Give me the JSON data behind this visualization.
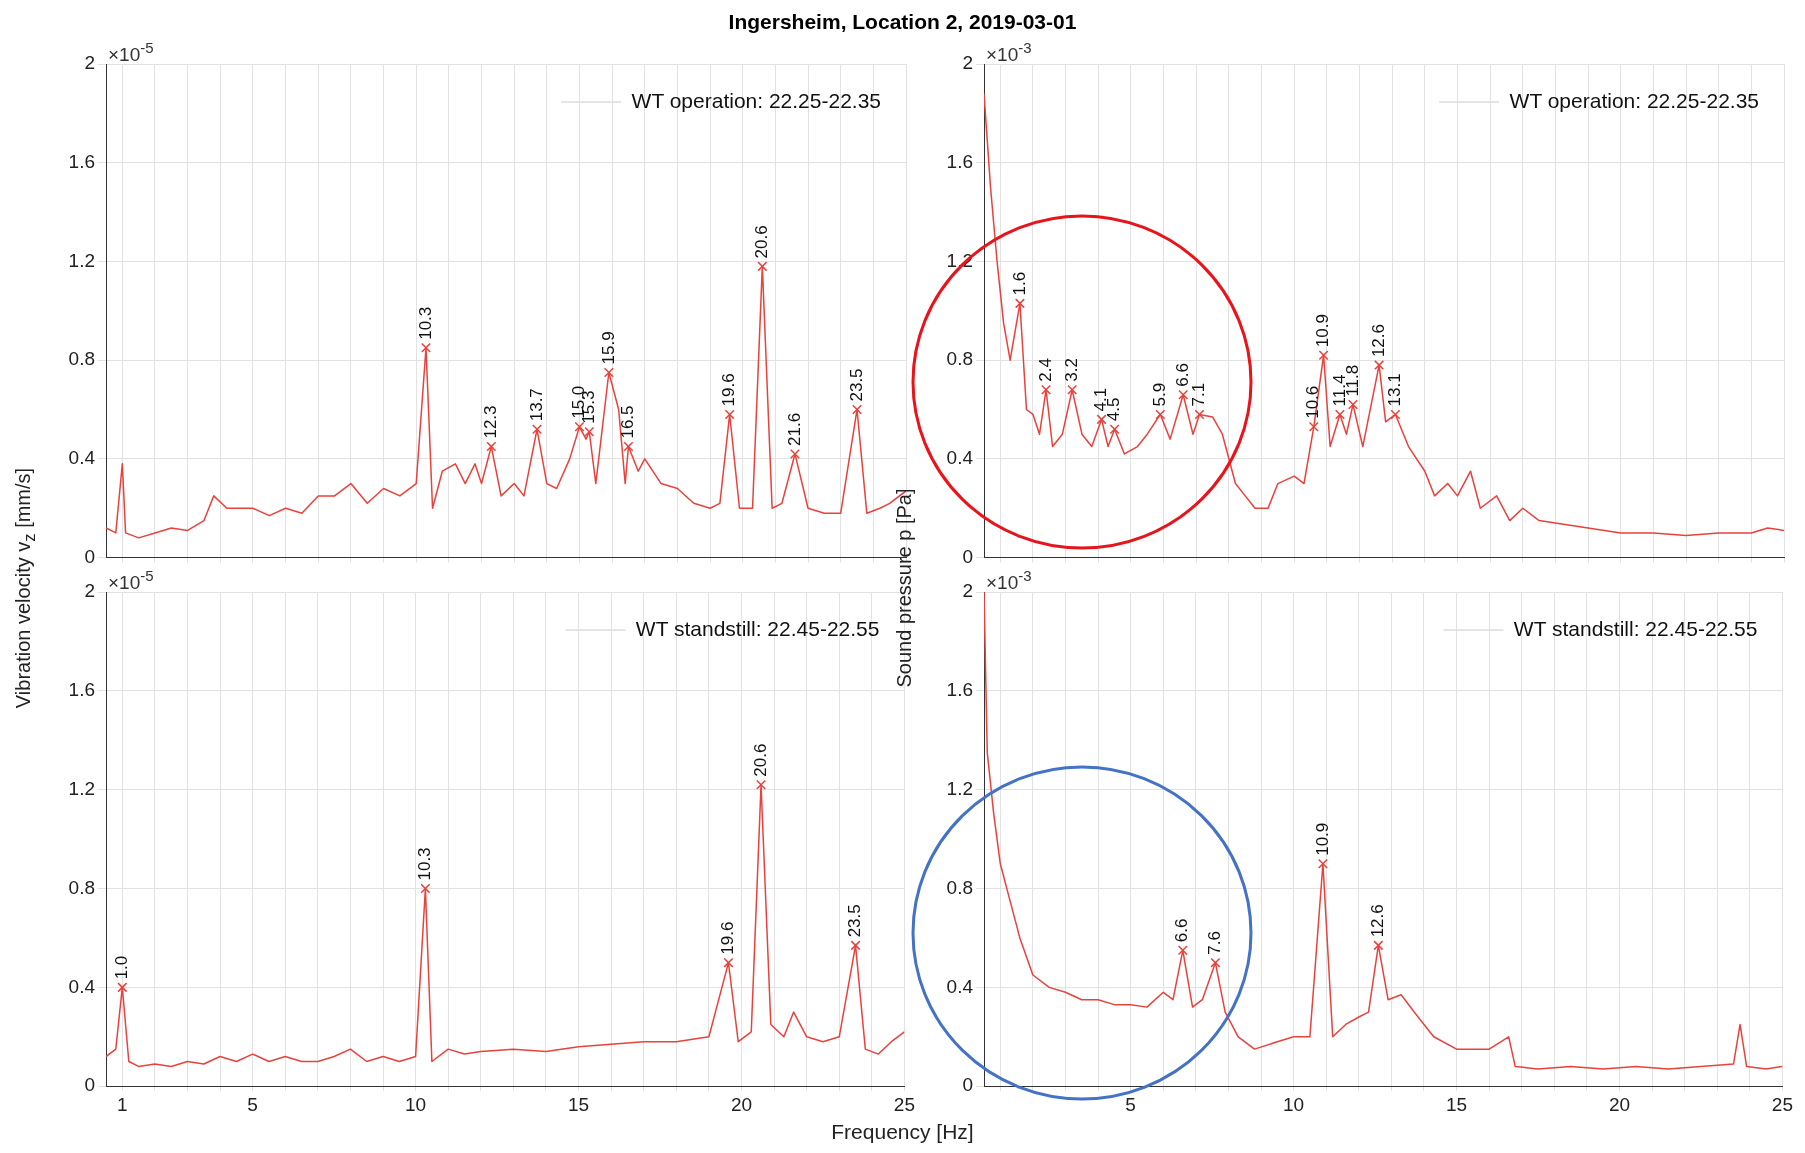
{
  "chart_data": [
    {
      "type": "line",
      "title": "Ingersheim, Location 2, 2019-03-01",
      "ylabel": "Vibration velocity v$_{z}$ [mm/s]",
      "xlim": [
        0.5,
        25
      ],
      "ylim": [
        0,
        2
      ],
      "yticks": [
        0,
        0.4,
        0.8,
        1.2,
        1.6,
        2
      ],
      "xticks": [
        1,
        {
          "value": 2,
          "label": null
        },
        {
          "value": 3,
          "label": null
        },
        {
          "value": 4,
          "label": null
        },
        5,
        {
          "value": 6,
          "label": null
        },
        {
          "value": 7,
          "label": null
        },
        {
          "value": 8,
          "label": null
        },
        {
          "value": 9,
          "label": null
        },
        10,
        {
          "value": 11,
          "label": null
        },
        {
          "value": 12,
          "label": null
        },
        {
          "value": 13,
          "label": null
        },
        {
          "value": 14,
          "label": null
        },
        15,
        {
          "value": 16,
          "label": null
        },
        {
          "value": 17,
          "label": null
        },
        {
          "value": 18,
          "label": null
        },
        {
          "value": 19,
          "label": null
        },
        20,
        {
          "value": 21,
          "label": null
        },
        {
          "value": 22,
          "label": null
        },
        {
          "value": 23,
          "label": null
        },
        {
          "value": 24,
          "label": null
        },
        25
      ],
      "grid": true,
      "tick_labels": "y",
      "annotations": [
        "×10$^{-5}$",
        "WT operation: 22.25-22.35",
        {
          "text": "10.3",
          "x": 10.3,
          "y": 0.85
        },
        {
          "text": "12.3",
          "x": 12.3,
          "y": 0.45
        },
        {
          "text": "13.7",
          "x": 13.7,
          "y": 0.52
        },
        {
          "text": "15.0",
          "x": 15.0,
          "y": 0.53
        },
        {
          "text": "15.3",
          "x": 15.3,
          "y": 0.51
        },
        {
          "text": "15.9",
          "x": 15.9,
          "y": 0.75
        },
        {
          "text": "16.5",
          "x": 16.5,
          "y": 0.45
        },
        {
          "text": "19.6",
          "x": 19.6,
          "y": 0.58
        },
        {
          "text": "20.6",
          "x": 20.6,
          "y": 1.18
        },
        {
          "text": "21.6",
          "x": 21.6,
          "y": 0.42
        },
        {
          "text": "23.5",
          "x": 23.5,
          "y": 0.6
        }
      ],
      "series": [
        {
          "color": "#e8423c",
          "x": [
            0.5,
            0.8,
            1.0,
            1.1,
            1.5,
            2,
            2.5,
            3,
            3.5,
            3.8,
            4.2,
            5,
            5.5,
            6,
            6.5,
            7,
            7.5,
            8,
            8.5,
            9,
            9.5,
            10,
            10.3,
            10.5,
            10.8,
            11.2,
            11.5,
            11.8,
            12,
            12.3,
            12.6,
            13,
            13.3,
            13.7,
            14,
            14.3,
            14.7,
            15.0,
            15.2,
            15.3,
            15.5,
            15.9,
            16.2,
            16.4,
            16.5,
            16.8,
            17,
            17.5,
            18,
            18.5,
            19,
            19.3,
            19.6,
            19.9,
            20.3,
            20.6,
            20.9,
            21.2,
            21.6,
            22,
            22.5,
            23,
            23.5,
            23.8,
            24.2,
            24.5,
            25
          ],
          "values": [
            0.12,
            0.1,
            0.38,
            0.1,
            0.08,
            0.1,
            0.12,
            0.11,
            0.15,
            0.25,
            0.2,
            0.2,
            0.17,
            0.2,
            0.18,
            0.25,
            0.25,
            0.3,
            0.22,
            0.28,
            0.25,
            0.3,
            0.85,
            0.2,
            0.35,
            0.38,
            0.3,
            0.38,
            0.3,
            0.45,
            0.25,
            0.3,
            0.25,
            0.52,
            0.3,
            0.28,
            0.4,
            0.53,
            0.48,
            0.51,
            0.3,
            0.75,
            0.6,
            0.3,
            0.45,
            0.35,
            0.4,
            0.3,
            0.28,
            0.22,
            0.2,
            0.22,
            0.58,
            0.2,
            0.2,
            1.18,
            0.2,
            0.22,
            0.42,
            0.2,
            0.18,
            0.18,
            0.6,
            0.18,
            0.2,
            0.22,
            0.27
          ]
        },
        {
          "type": "scatter",
          "color": "#e8423c",
          "marker": "cross",
          "x": [
            10.3,
            12.3,
            13.7,
            15.0,
            15.3,
            15.9,
            16.5,
            19.6,
            20.6,
            21.6,
            23.5
          ],
          "values": [
            0.85,
            0.45,
            0.52,
            0.53,
            0.51,
            0.75,
            0.45,
            0.58,
            1.18,
            0.42,
            0.6
          ]
        }
      ]
    },
    {
      "type": "line",
      "ylabel": "Sound pressure p [Pa]",
      "xlim": [
        0.5,
        25
      ],
      "ylim": [
        0,
        2
      ],
      "yticks": [
        0,
        0.4,
        0.8,
        1.2,
        1.6,
        2
      ],
      "xticks": [
        {
          "value": 1,
          "label": null
        },
        {
          "value": 2,
          "label": null
        },
        {
          "value": 3,
          "label": null
        },
        {
          "value": 4,
          "label": null
        },
        5,
        {
          "value": 6,
          "label": null
        },
        {
          "value": 7,
          "label": null
        },
        {
          "value": 8,
          "label": null
        },
        {
          "value": 9,
          "label": null
        },
        10,
        {
          "value": 11,
          "label": null
        },
        {
          "value": 12,
          "label": null
        },
        {
          "value": 13,
          "label": null
        },
        {
          "value": 14,
          "label": null
        },
        15,
        {
          "value": 16,
          "label": null
        },
        {
          "value": 17,
          "label": null
        },
        {
          "value": 18,
          "label": null
        },
        {
          "value": 19,
          "label": null
        },
        20,
        {
          "value": 21,
          "label": null
        },
        {
          "value": 22,
          "label": null
        },
        {
          "value": 23,
          "label": null
        },
        {
          "value": 24,
          "label": null
        },
        25
      ],
      "grid": true,
      "tick_labels": "y",
      "annotations": [
        "×10$^{-3}$",
        "WT operation: 22.25-22.35",
        {
          "text": "1.6",
          "x": 1.6,
          "y": 1.03
        },
        {
          "text": "2.4",
          "x": 2.4,
          "y": 0.68
        },
        {
          "text": "3.2",
          "x": 3.2,
          "y": 0.68
        },
        {
          "text": "4.1",
          "x": 4.1,
          "y": 0.56
        },
        {
          "text": "4.5",
          "x": 4.5,
          "y": 0.52
        },
        {
          "text": "5.9",
          "x": 5.9,
          "y": 0.58
        },
        {
          "text": "6.6",
          "x": 6.6,
          "y": 0.66
        },
        {
          "text": "7.1",
          "x": 7.1,
          "y": 0.58
        },
        {
          "text": "10.6",
          "x": 10.6,
          "y": 0.53
        },
        {
          "text": "10.9",
          "x": 10.9,
          "y": 0.82
        },
        {
          "text": "11.4",
          "x": 11.4,
          "y": 0.58
        },
        {
          "text": "11.8",
          "x": 11.8,
          "y": 0.62
        },
        {
          "text": "12.6",
          "x": 12.6,
          "y": 0.78
        },
        {
          "text": "13.1",
          "x": 13.1,
          "y": 0.58
        }
      ],
      "series": [
        {
          "color": "#e8423c",
          "x": [
            0.5,
            0.7,
            0.9,
            1.1,
            1.3,
            1.6,
            1.8,
            2.0,
            2.2,
            2.4,
            2.6,
            2.9,
            3.2,
            3.5,
            3.8,
            4.1,
            4.3,
            4.5,
            4.8,
            5.2,
            5.5,
            5.9,
            6.2,
            6.6,
            6.9,
            7.1,
            7.5,
            7.8,
            8.2,
            8.5,
            8.8,
            9.2,
            9.5,
            10,
            10.3,
            10.6,
            10.9,
            11.1,
            11.4,
            11.6,
            11.8,
            12.1,
            12.6,
            12.8,
            13.1,
            13.5,
            14,
            14.3,
            14.7,
            15,
            15.4,
            15.7,
            16.2,
            16.6,
            17,
            17.5,
            18,
            19,
            20,
            21,
            22,
            23,
            24,
            24.5,
            25
          ],
          "values": [
            1.88,
            1.5,
            1.2,
            0.95,
            0.8,
            1.03,
            0.6,
            0.58,
            0.5,
            0.68,
            0.45,
            0.5,
            0.68,
            0.5,
            0.45,
            0.56,
            0.45,
            0.52,
            0.42,
            0.45,
            0.5,
            0.58,
            0.48,
            0.66,
            0.5,
            0.58,
            0.57,
            0.5,
            0.3,
            0.25,
            0.2,
            0.2,
            0.3,
            0.33,
            0.3,
            0.53,
            0.82,
            0.45,
            0.58,
            0.5,
            0.62,
            0.45,
            0.78,
            0.55,
            0.58,
            0.45,
            0.35,
            0.25,
            0.3,
            0.25,
            0.35,
            0.2,
            0.25,
            0.15,
            0.2,
            0.15,
            0.14,
            0.12,
            0.1,
            0.1,
            0.09,
            0.1,
            0.1,
            0.12,
            0.11
          ]
        },
        {
          "type": "scatter",
          "color": "#e8423c",
          "marker": "cross",
          "x": [
            1.6,
            2.4,
            3.2,
            4.1,
            4.5,
            5.9,
            6.6,
            7.1,
            10.6,
            10.9,
            11.4,
            11.8,
            12.6,
            13.1
          ],
          "values": [
            1.03,
            0.68,
            0.68,
            0.56,
            0.52,
            0.58,
            0.66,
            0.58,
            0.53,
            0.82,
            0.58,
            0.62,
            0.78,
            0.58
          ]
        }
      ]
    },
    {
      "type": "line",
      "xlabel": "Frequency [Hz]",
      "xlim": [
        0.5,
        25
      ],
      "ylim": [
        0,
        2
      ],
      "yticks": [
        0,
        0.4,
        0.8,
        1.2,
        1.6,
        2
      ],
      "xticks": [
        1,
        {
          "value": 2,
          "label": null
        },
        {
          "value": 3,
          "label": null
        },
        {
          "value": 4,
          "label": null
        },
        5,
        {
          "value": 6,
          "label": null
        },
        {
          "value": 7,
          "label": null
        },
        {
          "value": 8,
          "label": null
        },
        {
          "value": 9,
          "label": null
        },
        10,
        {
          "value": 11,
          "label": null
        },
        {
          "value": 12,
          "label": null
        },
        {
          "value": 13,
          "label": null
        },
        {
          "value": 14,
          "label": null
        },
        15,
        {
          "value": 16,
          "label": null
        },
        {
          "value": 17,
          "label": null
        },
        {
          "value": 18,
          "label": null
        },
        {
          "value": 19,
          "label": null
        },
        20,
        {
          "value": 21,
          "label": null
        },
        {
          "value": 22,
          "label": null
        },
        {
          "value": 23,
          "label": null
        },
        {
          "value": 24,
          "label": null
        },
        25
      ],
      "grid": true,
      "annotations": [
        "×10$^{-5}$",
        "WT standstill: 22.45-22.55",
        {
          "text": "1.0",
          "x": 1.0,
          "y": 0.4
        },
        {
          "text": "10.3",
          "x": 10.3,
          "y": 0.8
        },
        {
          "text": "19.6",
          "x": 19.6,
          "y": 0.5
        },
        {
          "text": "20.6",
          "x": 20.6,
          "y": 1.22
        },
        {
          "text": "23.5",
          "x": 23.5,
          "y": 0.57
        }
      ],
      "series": [
        {
          "color": "#e8423c",
          "x": [
            0.5,
            0.8,
            1.0,
            1.2,
            1.5,
            2,
            2.5,
            3,
            3.5,
            4,
            4.5,
            5,
            5.5,
            6,
            6.5,
            7,
            7.5,
            8,
            8.5,
            9,
            9.5,
            10,
            10.3,
            10.5,
            11,
            11.5,
            12,
            13,
            14,
            15,
            16,
            17,
            18,
            19,
            19.6,
            19.9,
            20.3,
            20.6,
            20.9,
            21.3,
            21.6,
            22,
            22.5,
            23,
            23.5,
            23.8,
            24.2,
            24.6,
            25
          ],
          "values": [
            0.12,
            0.15,
            0.4,
            0.1,
            0.08,
            0.09,
            0.08,
            0.1,
            0.09,
            0.12,
            0.1,
            0.13,
            0.1,
            0.12,
            0.1,
            0.1,
            0.12,
            0.15,
            0.1,
            0.12,
            0.1,
            0.12,
            0.8,
            0.1,
            0.15,
            0.13,
            0.14,
            0.15,
            0.14,
            0.16,
            0.17,
            0.18,
            0.18,
            0.2,
            0.5,
            0.18,
            0.22,
            1.22,
            0.25,
            0.2,
            0.3,
            0.2,
            0.18,
            0.2,
            0.57,
            0.15,
            0.13,
            0.18,
            0.22
          ]
        },
        {
          "type": "scatter",
          "color": "#e8423c",
          "marker": "cross",
          "x": [
            1.0,
            10.3,
            19.6,
            20.6,
            23.5
          ],
          "values": [
            0.4,
            0.8,
            0.5,
            1.22,
            0.57
          ]
        }
      ]
    },
    {
      "type": "line",
      "xlim": [
        0.5,
        25
      ],
      "ylim": [
        0,
        2
      ],
      "yticks": [
        0,
        0.4,
        0.8,
        1.2,
        1.6,
        2
      ],
      "xticks": [
        {
          "value": 1,
          "label": null
        },
        {
          "value": 2,
          "label": null
        },
        {
          "value": 3,
          "label": null
        },
        {
          "value": 4,
          "label": null
        },
        5,
        {
          "value": 6,
          "label": null
        },
        {
          "value": 7,
          "label": null
        },
        {
          "value": 8,
          "label": null
        },
        {
          "value": 9,
          "label": null
        },
        10,
        {
          "value": 11,
          "label": null
        },
        {
          "value": 12,
          "label": null
        },
        {
          "value": 13,
          "label": null
        },
        {
          "value": 14,
          "label": null
        },
        15,
        {
          "value": 16,
          "label": null
        },
        {
          "value": 17,
          "label": null
        },
        {
          "value": 18,
          "label": null
        },
        {
          "value": 19,
          "label": null
        },
        20,
        {
          "value": 21,
          "label": null
        },
        {
          "value": 22,
          "label": null
        },
        {
          "value": 23,
          "label": null
        },
        {
          "value": 24,
          "label": null
        },
        25
      ],
      "grid": true,
      "annotations": [
        "×10$^{-3}$",
        "WT standstill: 22.45-22.55",
        {
          "text": "6.6",
          "x": 6.6,
          "y": 0.55
        },
        {
          "text": "7.6",
          "x": 7.6,
          "y": 0.5
        },
        {
          "text": "10.9",
          "x": 10.9,
          "y": 0.9
        },
        {
          "text": "12.6",
          "x": 12.6,
          "y": 0.57
        }
      ],
      "series": [
        {
          "color": "#e8423c",
          "x": [
            0.5,
            0.6,
            0.8,
            1.0,
            1.3,
            1.6,
            2.0,
            2.5,
            3,
            3.5,
            4,
            4.5,
            5,
            5.5,
            6,
            6.3,
            6.6,
            6.9,
            7.2,
            7.6,
            7.9,
            8.3,
            8.8,
            9.5,
            10,
            10.5,
            10.9,
            11.2,
            11.6,
            12,
            12.3,
            12.6,
            12.9,
            13.3,
            13.7,
            14.3,
            15,
            16,
            16.6,
            16.8,
            17.5,
            18.5,
            19.5,
            20.5,
            21.5,
            22.5,
            23.5,
            23.7,
            23.9,
            24.5,
            25
          ],
          "values": [
            2.0,
            1.35,
            1.1,
            0.9,
            0.75,
            0.6,
            0.45,
            0.4,
            0.38,
            0.35,
            0.35,
            0.33,
            0.33,
            0.32,
            0.38,
            0.35,
            0.55,
            0.32,
            0.35,
            0.5,
            0.3,
            0.2,
            0.15,
            0.18,
            0.2,
            0.2,
            0.9,
            0.2,
            0.25,
            0.28,
            0.3,
            0.57,
            0.35,
            0.37,
            0.3,
            0.2,
            0.15,
            0.15,
            0.2,
            0.08,
            0.07,
            0.08,
            0.07,
            0.08,
            0.07,
            0.08,
            0.09,
            0.25,
            0.08,
            0.07,
            0.08
          ]
        },
        {
          "type": "scatter",
          "color": "#e8423c",
          "marker": "cross",
          "x": [
            6.6,
            7.6,
            10.9,
            12.6
          ],
          "values": [
            0.55,
            0.5,
            0.9,
            0.57
          ]
        }
      ]
    }
  ]
}
